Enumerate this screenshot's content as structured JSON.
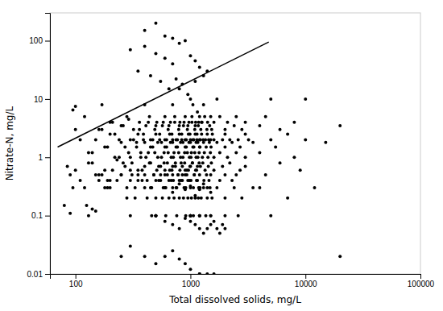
{
  "chart_data": {
    "type": "scatter",
    "xlabel": "Total dissolved solids, mg/L",
    "ylabel": "Nitrate-N, mg/L",
    "log": true,
    "xlim": [
      60,
      100000
    ],
    "ylim": [
      0.01,
      300
    ],
    "xticks": [
      100,
      1000,
      10000,
      100000
    ],
    "yticks": [
      0.01,
      0.1,
      1,
      10,
      100
    ],
    "series": [
      {
        "type": "scatter",
        "color": "#000000",
        "marker": "circle",
        "x": [
          80,
          90,
          95,
          100,
          100,
          110,
          120,
          130,
          140,
          150,
          160,
          170,
          180,
          190,
          200,
          200,
          210,
          220,
          230,
          240,
          250,
          250,
          260,
          270,
          280,
          280,
          290,
          300,
          300,
          300,
          310,
          320,
          330,
          340,
          350,
          350,
          360,
          370,
          380,
          390,
          400,
          400,
          400,
          410,
          420,
          430,
          440,
          450,
          450,
          460,
          470,
          480,
          490,
          500,
          500,
          500,
          500,
          500,
          500,
          510,
          520,
          530,
          540,
          550,
          560,
          570,
          580,
          590,
          600,
          600,
          600,
          610,
          620,
          630,
          640,
          650,
          660,
          670,
          680,
          690,
          700,
          700,
          700,
          700,
          710,
          720,
          730,
          740,
          750,
          760,
          770,
          780,
          790,
          800,
          800,
          800,
          810,
          820,
          830,
          840,
          850,
          860,
          870,
          880,
          890,
          900,
          900,
          900,
          910,
          920,
          930,
          940,
          950,
          960,
          970,
          980,
          990,
          1000,
          1000,
          1000,
          1000,
          1000,
          1000,
          1000,
          1000,
          1010,
          1020,
          1030,
          1040,
          1050,
          1060,
          1070,
          1080,
          1090,
          1100,
          1100,
          1100,
          1110,
          1120,
          1130,
          1140,
          1150,
          1160,
          1170,
          1180,
          1190,
          1200,
          1200,
          1200,
          1200,
          1200,
          1200,
          1210,
          1220,
          1230,
          1240,
          1250,
          1260,
          1270,
          1280,
          1290,
          1300,
          1300,
          1300,
          1310,
          1320,
          1330,
          1340,
          1350,
          1360,
          1370,
          1380,
          1390,
          1400,
          1400,
          1400,
          1410,
          1420,
          1430,
          1440,
          1450,
          1460,
          1470,
          1480,
          1490,
          1500,
          1500,
          1500,
          1500,
          1500,
          1510,
          1520,
          1530,
          1540,
          1550,
          1600,
          1600,
          1600,
          1600,
          1700,
          1700,
          1700,
          1800,
          1800,
          1800,
          1900,
          1900,
          2000,
          2000,
          2000,
          2000,
          2000,
          2000,
          2100,
          2100,
          2200,
          2200,
          2300,
          2300,
          2400,
          2400,
          2500,
          2500,
          2500,
          2600,
          2600,
          2700,
          2700,
          2800,
          2800,
          3000,
          3000,
          3000,
          3000,
          3200,
          3500,
          3500,
          4000,
          4000,
          4000,
          4500,
          4500,
          5000,
          5000,
          5000,
          5500,
          6000,
          6000,
          7000,
          7000,
          8000,
          8000,
          9000,
          10000,
          10000,
          12000,
          15000,
          20000,
          20000,
          300,
          400,
          500,
          600,
          700,
          800,
          900,
          1000,
          1100,
          1200,
          1300,
          400,
          500,
          600,
          700,
          350,
          450,
          550,
          650,
          750,
          850,
          950,
          1050,
          1150,
          1250,
          250,
          300,
          400,
          500,
          600,
          700,
          800,
          900,
          1000,
          1200,
          130,
          140,
          150,
          160,
          170,
          180,
          190,
          200,
          210,
          220,
          230,
          240,
          250,
          260,
          270,
          280,
          290,
          300,
          310,
          320,
          330,
          340,
          350,
          360,
          370,
          380,
          390,
          400,
          410,
          420,
          430,
          440,
          450,
          460,
          470,
          480,
          490,
          500,
          510,
          520,
          530,
          540,
          550,
          560,
          570,
          580,
          590,
          600,
          610,
          620,
          630,
          640,
          650,
          660,
          670,
          680,
          690,
          700,
          710,
          720,
          730,
          740,
          750,
          760,
          770,
          780,
          790,
          800,
          810,
          820,
          830,
          840,
          850,
          860,
          870,
          880,
          890,
          900,
          910,
          920,
          930,
          940,
          950,
          960,
          970,
          980,
          990,
          1000,
          1010,
          1020,
          1030,
          1040,
          1050,
          1060,
          1070,
          1080,
          1090,
          1100,
          1110,
          1120,
          1130,
          1140,
          1150,
          1160,
          1170,
          1180,
          1190,
          1200,
          1210,
          1220,
          600,
          700,
          800,
          900,
          1000,
          1100,
          1200,
          1300,
          1400,
          1500,
          1600,
          1700,
          1800,
          1900,
          2000,
          600,
          700,
          800,
          900,
          1000,
          1100,
          1200,
          1300,
          1400,
          1500,
          160,
          170,
          180,
          190,
          200,
          250,
          300,
          350,
          400,
          450,
          500,
          550,
          600,
          650,
          700,
          750,
          800,
          850,
          900,
          950,
          1200,
          1400,
          1600,
          85,
          90,
          95,
          100,
          110,
          120,
          125,
          130,
          140,
          150
        ],
        "values": [
          0.15,
          0.11,
          6.5,
          7.5,
          3.0,
          2.0,
          5.0,
          1.2,
          0.8,
          0.5,
          3.0,
          8.0,
          0.3,
          1.5,
          0.4,
          2.5,
          4.0,
          1.0,
          0.9,
          2.0,
          0.5,
          1.8,
          3.5,
          0.7,
          5.0,
          0.3,
          1.2,
          0.4,
          2.0,
          0.1,
          0.8,
          3.0,
          0.2,
          1.5,
          0.5,
          2.5,
          4.0,
          1.0,
          0.6,
          2.0,
          0.3,
          1.8,
          8.0,
          3.5,
          0.4,
          1.2,
          5.0,
          0.8,
          2.0,
          0.1,
          1.5,
          0.5,
          3.0,
          0.2,
          2.5,
          0.1,
          0.1,
          0.1,
          0.1,
          4.0,
          1.0,
          0.7,
          2.0,
          0.4,
          1.8,
          3.5,
          0.3,
          1.2,
          5.0,
          0.5,
          2.0,
          0.1,
          1.5,
          0.8,
          3.0,
          0.2,
          2.5,
          4.0,
          1.0,
          0.6,
          2.0,
          0.3,
          1.8,
          8.0,
          0.4,
          1.2,
          5.0,
          0.7,
          2.0,
          0.1,
          1.5,
          0.5,
          3.0,
          0.2,
          2.5,
          15.0,
          4.0,
          1.0,
          0.8,
          2.0,
          0.4,
          1.8,
          3.5,
          0.3,
          1.2,
          5.0,
          0.5,
          2.0,
          0.1,
          1.5,
          0.6,
          3.0,
          0.2,
          2.5,
          4.0,
          1.0,
          0.7,
          2.0,
          0.3,
          1.8,
          10.0,
          0.1,
          0.1,
          0.1,
          0.1,
          0.4,
          1.2,
          5.0,
          0.8,
          2.0,
          0.1,
          1.5,
          0.5,
          3.0,
          0.2,
          2.5,
          20.0,
          4.0,
          1.0,
          0.6,
          2.0,
          0.4,
          1.8,
          3.5,
          0.3,
          1.2,
          5.0,
          0.5,
          2.0,
          0.1,
          0.1,
          0.1,
          1.5,
          0.7,
          3.0,
          0.2,
          2.5,
          4.0,
          1.0,
          0.8,
          2.0,
          0.3,
          1.8,
          8.0,
          0.4,
          1.2,
          5.0,
          0.6,
          2.0,
          0.1,
          1.5,
          0.5,
          3.0,
          0.2,
          2.5,
          30.0,
          4.0,
          1.0,
          0.7,
          2.0,
          0.4,
          1.8,
          3.5,
          0.3,
          1.2,
          5.0,
          0.5,
          2.0,
          0.1,
          0.1,
          1.5,
          0.8,
          3.0,
          0.2,
          2.5,
          4.0,
          1.0,
          0.6,
          2.0,
          0.3,
          1.8,
          10.0,
          0.4,
          1.2,
          5.0,
          0.7,
          2.0,
          0.1,
          1.5,
          0.5,
          3.0,
          0.2,
          2.5,
          4.0,
          1.0,
          0.8,
          2.0,
          0.4,
          1.8,
          3.5,
          0.3,
          1.2,
          5.0,
          0.5,
          2.0,
          0.1,
          1.5,
          0.6,
          3.0,
          0.2,
          2.5,
          4.0,
          1.0,
          0.7,
          2.0,
          0.3,
          1.8,
          3.5,
          0.3,
          1.2,
          5.0,
          0.5,
          2.0,
          0.1,
          10.0,
          1.5,
          0.8,
          3.0,
          0.2,
          2.5,
          4.0,
          1.0,
          0.6,
          2.0,
          10.0,
          0.3,
          1.8,
          3.5,
          0.02,
          70.0,
          80.0,
          60.0,
          50.0,
          40.0,
          90.0,
          100.0,
          55.0,
          45.0,
          35.0,
          25.0,
          150.0,
          200.0,
          120.0,
          110.0,
          30.0,
          25.0,
          20.0,
          15.0,
          22.0,
          18.0,
          12.0,
          8.0,
          6.0,
          4.0,
          0.02,
          0.03,
          0.02,
          0.015,
          0.02,
          0.025,
          0.018,
          0.015,
          0.012,
          0.01,
          0.8,
          1.2,
          2.0,
          0.5,
          3.0,
          1.5,
          0.3,
          4.0,
          0.6,
          2.5,
          0.4,
          1.0,
          3.5,
          0.8,
          1.5,
          0.2,
          4.5,
          1.0,
          0.5,
          2.0,
          0.3,
          1.8,
          0.6,
          3.0,
          1.2,
          0.4,
          2.5,
          0.7,
          1.0,
          0.2,
          4.0,
          0.8,
          1.5,
          0.3,
          2.0,
          0.5,
          1.2,
          3.5,
          0.6,
          1.8,
          0.4,
          2.5,
          0.7,
          1.0,
          0.2,
          4.0,
          0.8,
          1.5,
          0.3,
          2.0,
          0.5,
          1.2,
          3.5,
          0.6,
          1.8,
          0.4,
          2.5,
          0.7,
          1.0,
          0.2,
          4.0,
          0.8,
          1.5,
          0.3,
          2.0,
          0.5,
          1.2,
          3.5,
          0.6,
          1.8,
          0.4,
          2.5,
          0.7,
          1.0,
          0.2,
          4.0,
          0.8,
          1.5,
          0.3,
          2.0,
          0.5,
          1.2,
          3.5,
          0.6,
          1.8,
          0.4,
          2.5,
          0.7,
          1.0,
          0.2,
          4.0,
          0.8,
          1.5,
          0.3,
          2.0,
          0.5,
          1.2,
          3.5,
          0.6,
          1.8,
          0.4,
          2.5,
          0.7,
          1.0,
          0.2,
          4.0,
          0.8,
          1.5,
          0.3,
          2.0,
          0.08,
          0.07,
          0.06,
          0.09,
          0.08,
          0.07,
          0.06,
          0.05,
          0.06,
          0.07,
          0.08,
          0.06,
          0.05,
          0.07,
          0.06,
          0.3,
          0.25,
          0.35,
          0.28,
          0.32,
          0.22,
          0.28,
          0.35,
          0.3,
          0.25,
          0.4,
          0.5,
          0.6,
          0.4,
          0.3,
          0.5,
          0.6,
          0.4,
          0.5,
          0.3,
          0.4,
          0.5,
          0.6,
          0.4,
          0.5,
          0.3,
          0.4,
          0.5,
          0.6,
          0.4,
          0.01,
          0.01,
          0.01,
          0.7,
          0.5,
          0.3,
          0.6,
          0.4,
          0.3,
          0.15,
          0.1,
          0.13,
          0.12
        ]
      },
      {
        "type": "line",
        "color": "#000000",
        "x": [
          70,
          4800
        ],
        "values": [
          1.5,
          95
        ]
      }
    ]
  }
}
